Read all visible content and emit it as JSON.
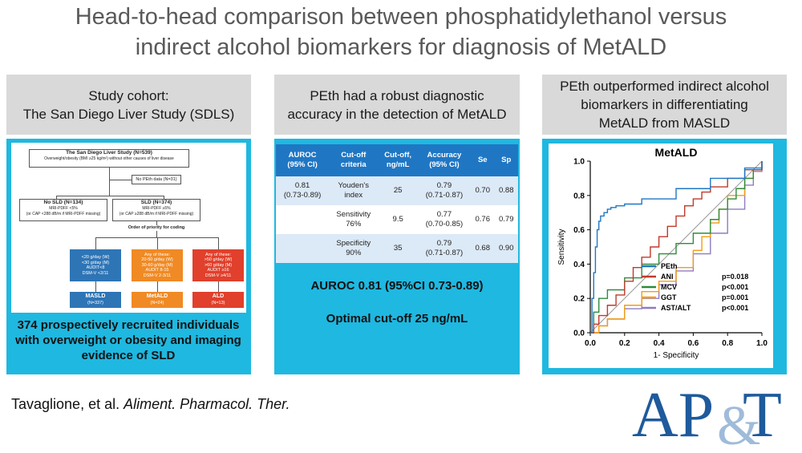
{
  "title": {
    "line1": "Head-to-head comparison between phosphatidylethanol versus",
    "line2": "indirect alcohol biomarkers for diagnosis of MetALD"
  },
  "colors": {
    "accent": "#1fb8e0",
    "header_bg": "#d9d9d9",
    "table_header": "#1f77c4",
    "logo": "#1e5a9c"
  },
  "panel1": {
    "heading_line1": "Study cohort:",
    "heading_line2": "The San Diego Liver Study (SDLS)",
    "flow": {
      "top_title": "The San Diego Liver Study (N=539)",
      "top_sub": "Overweight/obesity (BMI ≥25 kg/m²) without other causes of liver disease",
      "excluded": "No PEth data (N=31)",
      "no_sld_title": "No SLD (N=134)",
      "no_sld_sub1": "MRI-PDFF <5%",
      "no_sld_sub2": "(or CAP <288 dB/m if MRI-PDFF missing)",
      "sld_title": "SLD (N=374)",
      "sld_sub1": "MRI-PDFF ≥5%",
      "sld_sub2": "(or CAP ≥288 dB/m if MRI-PDFF missing)",
      "priority": "Order of priority for coding",
      "crit_masld": [
        "<20 g/day (W)",
        "<30 g/day (M)",
        "AUDIT<8",
        "DSM-V <2/11"
      ],
      "crit_metald": [
        "Any of these:",
        "20-50 g/day (W)",
        "30-60 g/day (M)",
        "AUDIT 8-15",
        "DSM-V 2-3/11"
      ],
      "crit_ald": [
        "Any of these:",
        ">50 g/day (W)",
        ">60 g/day (M)",
        "AUDIT ≥16",
        "DSM-V ≥4/11"
      ],
      "out_masld_name": "MASLD",
      "out_masld_n": "(N=337)",
      "out_metald_name": "MetALD",
      "out_metald_n": "(N=24)",
      "out_ald_name": "ALD",
      "out_ald_n": "(N=13)"
    },
    "caption": "374 prospectively recruited individuals with overweight or obesity and imaging evidence of SLD"
  },
  "panel2": {
    "heading_line1": "PEth had a robust diagnostic",
    "heading_line2": "accuracy in the detection of MetALD",
    "table": {
      "headers": [
        "AUROC\n(95% CI)",
        "Cut-off\ncriteria",
        "Cut-off,\nng/mL",
        "Accuracy\n(95% CI)",
        "Se",
        "Sp"
      ],
      "rows": [
        [
          "0.81\n(0.73-0.89)",
          "Youden's\nindex",
          "25",
          "0.79\n(0.71-0.87)",
          "0.70",
          "0.88"
        ],
        [
          "",
          "Sensitivity\n76%",
          "9.5",
          "0.77\n(0.70-0.85)",
          "0.76",
          "0.79"
        ],
        [
          "",
          "Specificity\n90%",
          "35",
          "0.79\n(0.71-0.87)",
          "0.68",
          "0.90"
        ]
      ]
    },
    "result1": "AUROC 0.81 (95%CI 0.73-0.89)",
    "result2": "Optimal cut-off 25 ng/mL"
  },
  "panel3": {
    "heading_line1": "PEth outperformed indirect alcohol",
    "heading_line2": "biomarkers in differentiating",
    "heading_line3": "MetALD from MASLD"
  },
  "chart_data": {
    "type": "line",
    "title": "MetALD",
    "xlabel": "1- Specificity",
    "ylabel": "Sensitivity",
    "xlim": [
      0,
      1
    ],
    "ylim": [
      0,
      1
    ],
    "xticks": [
      "0.0",
      "0.2",
      "0.4",
      "0.6",
      "0.8",
      "1.0"
    ],
    "yticks": [
      "0.0",
      "0.2",
      "0.4",
      "0.6",
      "0.8",
      "1.0"
    ],
    "legend_position": "bottom-right",
    "series": [
      {
        "name": "PEth",
        "p_label": "",
        "color": "#1f77c4",
        "x": [
          0,
          0.01,
          0.02,
          0.03,
          0.04,
          0.05,
          0.06,
          0.08,
          0.1,
          0.12,
          0.15,
          0.2,
          0.3,
          0.5,
          0.7,
          0.9,
          1.0
        ],
        "y": [
          0,
          0.2,
          0.35,
          0.5,
          0.6,
          0.65,
          0.68,
          0.7,
          0.72,
          0.73,
          0.74,
          0.75,
          0.78,
          0.84,
          0.9,
          0.96,
          1.0
        ]
      },
      {
        "name": "ANI",
        "p_label": "p=0.018",
        "color": "#c0392b",
        "x": [
          0,
          0.02,
          0.05,
          0.1,
          0.15,
          0.2,
          0.25,
          0.3,
          0.35,
          0.4,
          0.45,
          0.5,
          0.55,
          0.6,
          0.65,
          0.7,
          0.8,
          0.9,
          1.0
        ],
        "y": [
          0,
          0.05,
          0.1,
          0.16,
          0.22,
          0.3,
          0.38,
          0.44,
          0.5,
          0.56,
          0.62,
          0.68,
          0.74,
          0.78,
          0.82,
          0.85,
          0.9,
          0.95,
          1.0
        ]
      },
      {
        "name": "MCV",
        "p_label": "p<0.001",
        "color": "#2e8b3a",
        "x": [
          0,
          0.02,
          0.05,
          0.1,
          0.2,
          0.3,
          0.4,
          0.5,
          0.6,
          0.7,
          0.75,
          0.8,
          0.85,
          0.9,
          0.95,
          1.0
        ],
        "y": [
          0,
          0.12,
          0.2,
          0.25,
          0.32,
          0.4,
          0.46,
          0.52,
          0.58,
          0.66,
          0.72,
          0.78,
          0.84,
          0.9,
          0.95,
          1.0
        ]
      },
      {
        "name": "GGT",
        "p_label": "p=0.001",
        "color": "#f39c12",
        "x": [
          0,
          0.05,
          0.1,
          0.2,
          0.3,
          0.4,
          0.5,
          0.6,
          0.65,
          0.7,
          0.75,
          0.8,
          0.9,
          0.95,
          1.0
        ],
        "y": [
          0,
          0.04,
          0.08,
          0.16,
          0.24,
          0.3,
          0.38,
          0.48,
          0.56,
          0.64,
          0.72,
          0.8,
          0.9,
          0.95,
          1.0
        ]
      },
      {
        "name": "AST/ALT",
        "p_label": "p<0.001",
        "color": "#8e7cc3",
        "x": [
          0,
          0.05,
          0.1,
          0.2,
          0.3,
          0.4,
          0.5,
          0.6,
          0.7,
          0.8,
          0.9,
          0.95,
          1.0
        ],
        "y": [
          0,
          0.04,
          0.08,
          0.14,
          0.2,
          0.28,
          0.36,
          0.46,
          0.58,
          0.72,
          0.86,
          0.94,
          1.0
        ]
      }
    ]
  },
  "citation": {
    "authors": "Tavaglione, et al. ",
    "journal": "Aliment. Pharmacol. Ther."
  },
  "logo": {
    "text": "AP&T"
  }
}
